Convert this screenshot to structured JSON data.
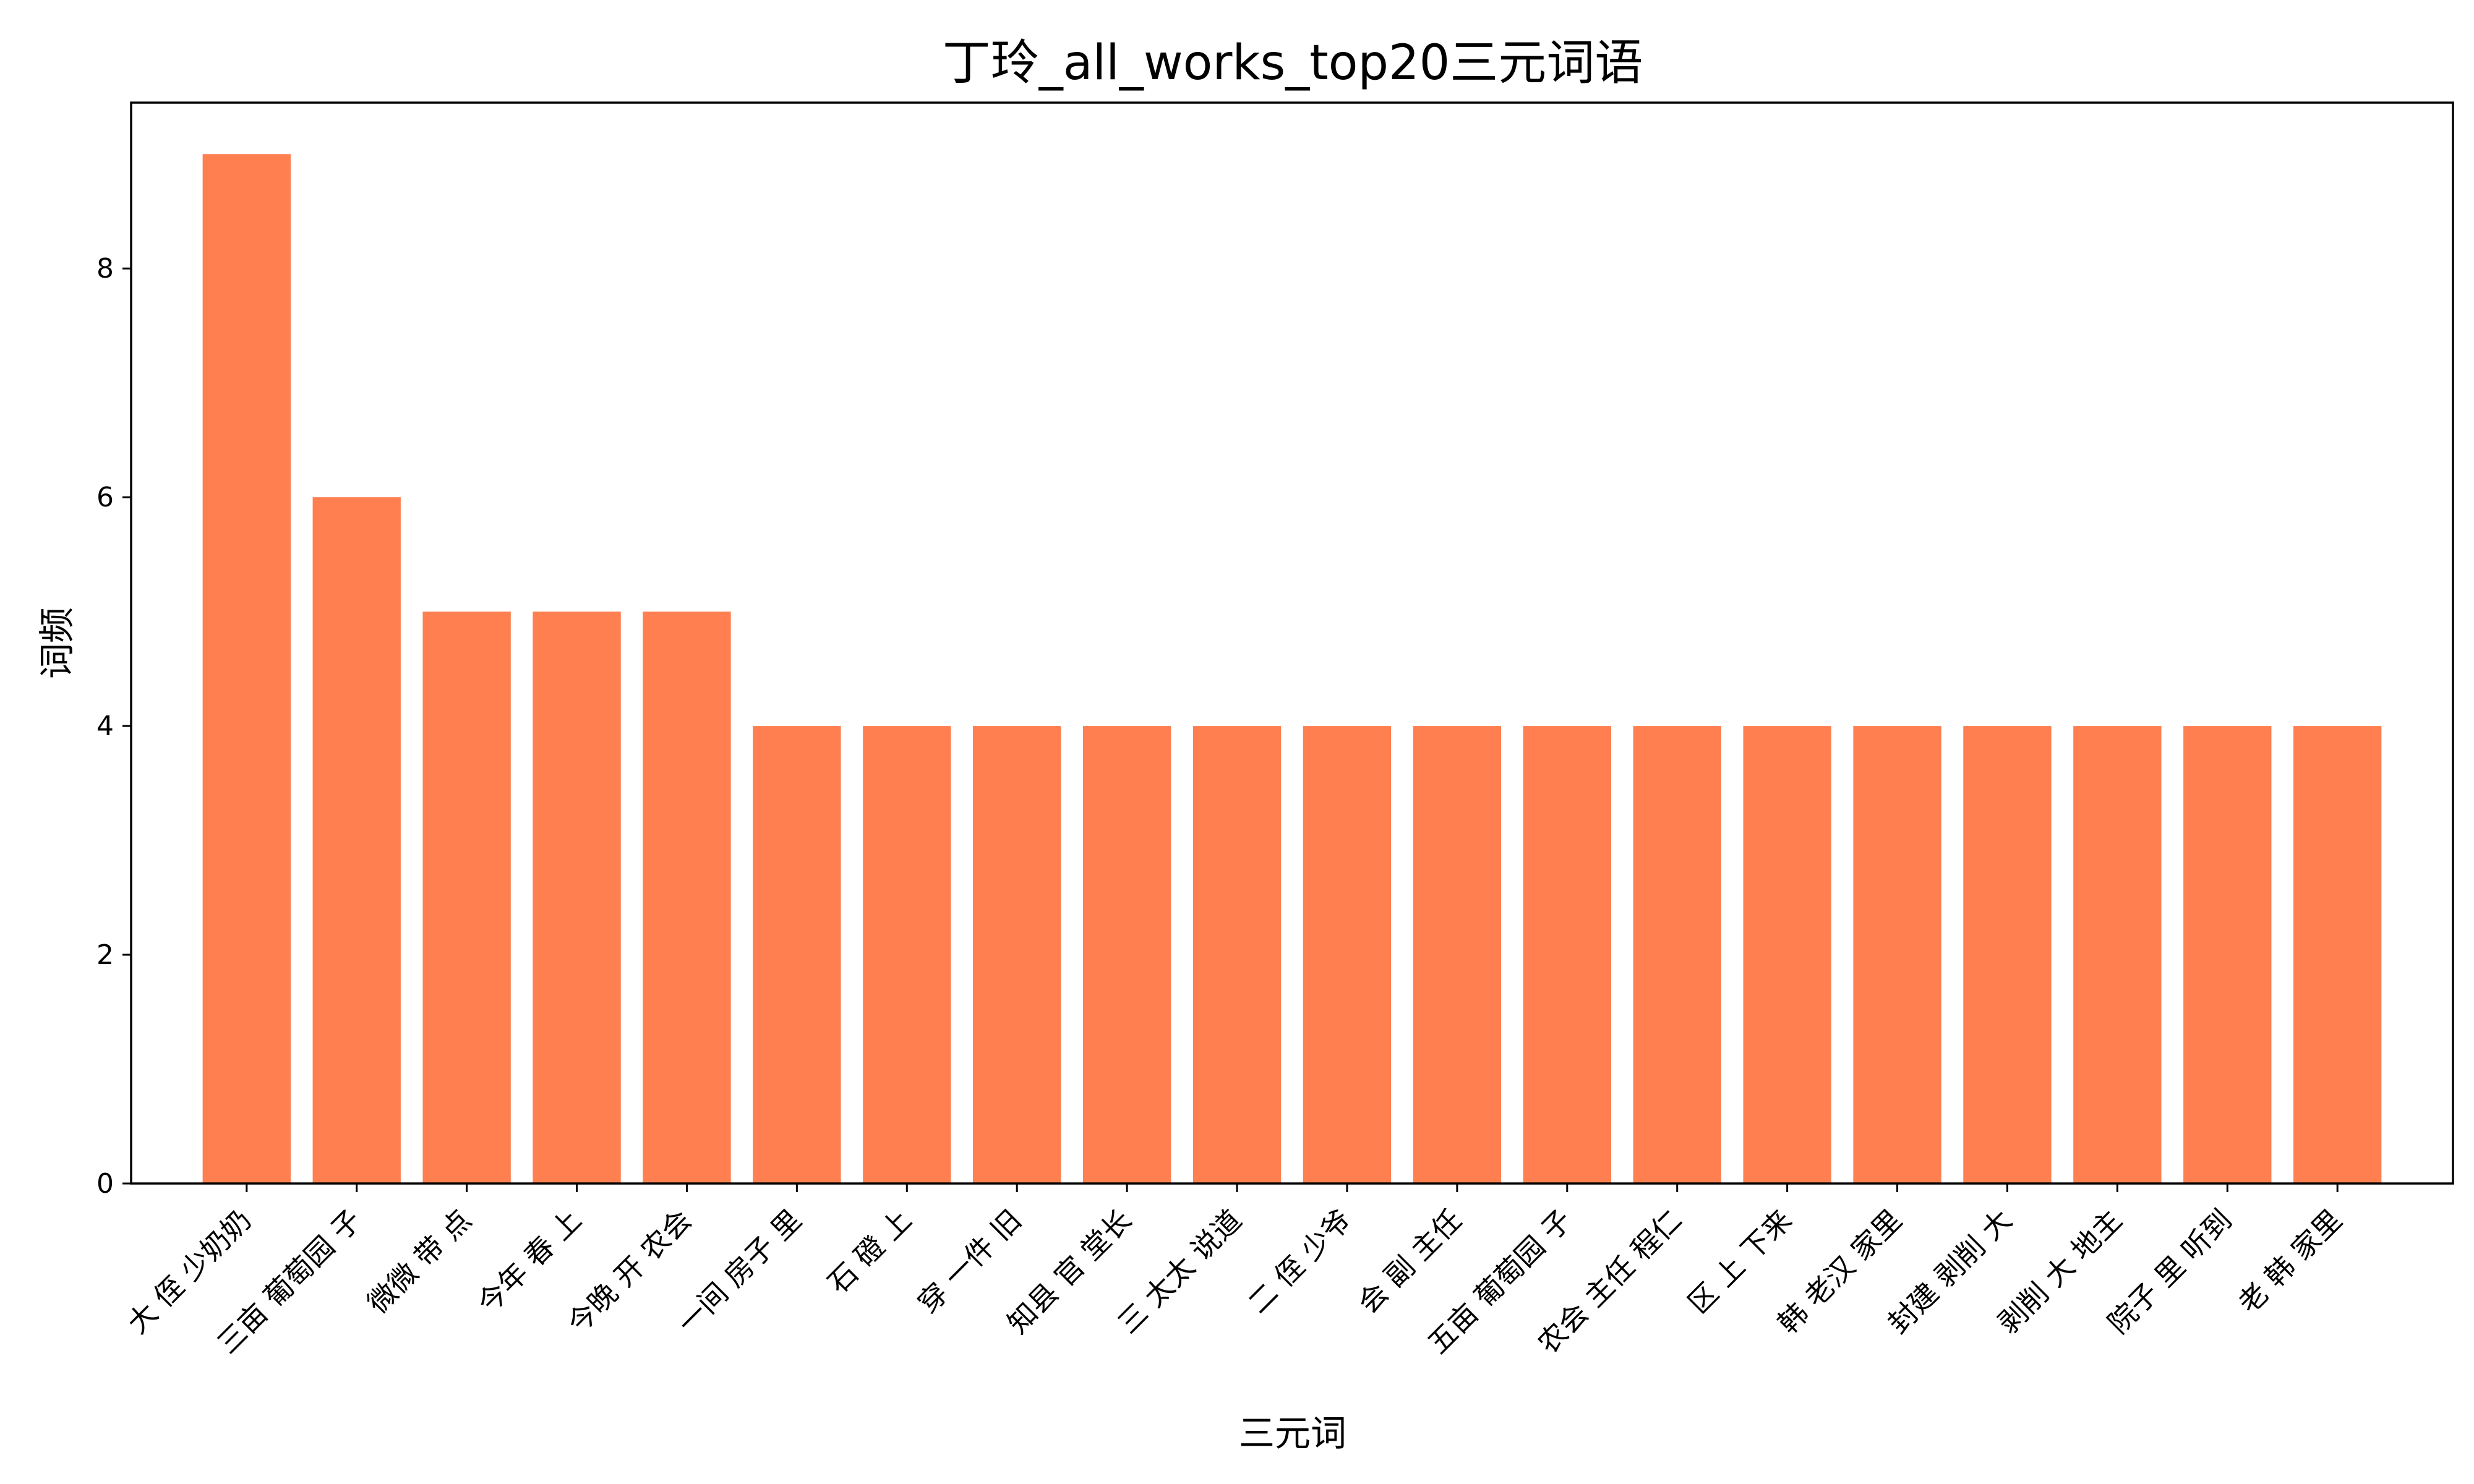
{
  "chart_data": {
    "type": "bar",
    "title": "丁玲_all_works_top20三元词语",
    "xlabel": "三元词",
    "ylabel": "词频",
    "ylim": [
      0,
      9.45
    ],
    "yticks": [
      0,
      2,
      4,
      6,
      8
    ],
    "grid": false,
    "bar_color": "#FF7F50",
    "categories": [
      "大 侄 少奶奶",
      "三亩 葡萄园 子",
      "微微 带 点",
      "今年 春 上",
      "今晚 开 农会",
      "一间 房子 里",
      "石 磴 上",
      "穿 一件 旧",
      "知县 官 堂长",
      "三 太太 说道",
      "二 侄 少爷",
      "会 副 主任",
      "五亩 葡萄园 子",
      "农会 主任 程仁",
      "区 上 下来",
      "韩 老汉 家里",
      "封建 剥削 大",
      "剥削 大 地主",
      "院子 里 听到",
      "老 韩 家里"
    ],
    "values": [
      9,
      6,
      5,
      5,
      5,
      4,
      4,
      4,
      4,
      4,
      4,
      4,
      4,
      4,
      4,
      4,
      4,
      4,
      4,
      4
    ]
  }
}
